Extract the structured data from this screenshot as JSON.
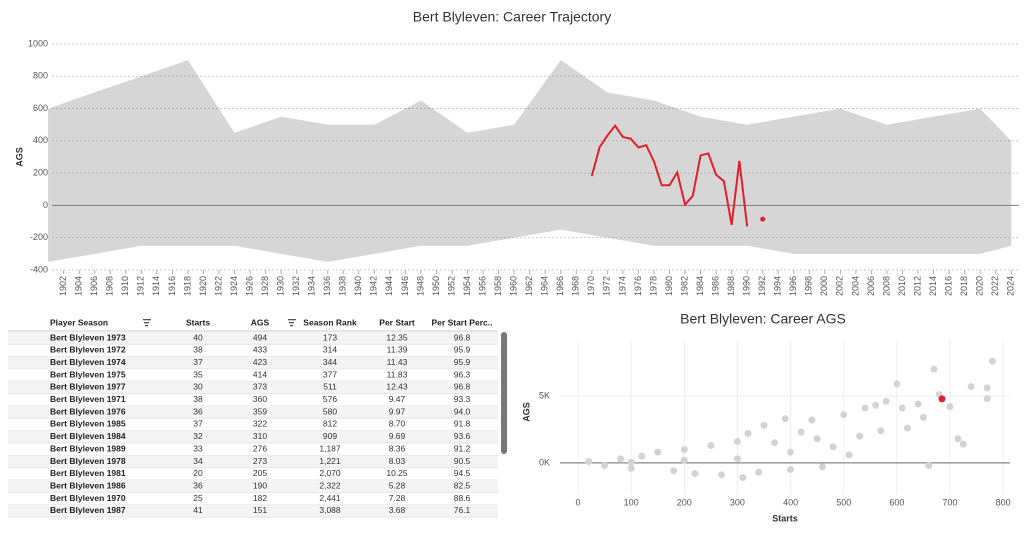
{
  "chart_data": [
    {
      "type": "line",
      "title": "Bert Blyleven: Career Trajectory",
      "y_label": "AGS",
      "xlim": [
        1900.5,
        2025
      ],
      "ylim": [
        -400,
        1000
      ],
      "yticks": [
        -400,
        -200,
        0,
        200,
        400,
        600,
        800,
        1000
      ],
      "xticks": [
        1902,
        1904,
        1906,
        1908,
        1910,
        1912,
        1914,
        1916,
        1918,
        1920,
        1922,
        1924,
        1926,
        1928,
        1930,
        1932,
        1934,
        1936,
        1938,
        1940,
        1942,
        1944,
        1946,
        1948,
        1950,
        1952,
        1954,
        1956,
        1958,
        1960,
        1962,
        1964,
        1966,
        1968,
        1970,
        1972,
        1974,
        1976,
        1978,
        1980,
        1982,
        1984,
        1986,
        1988,
        1990,
        1992,
        1994,
        1996,
        1998,
        2000,
        2002,
        2004,
        2006,
        2008,
        2010,
        2012,
        2014,
        2016,
        2018,
        2020,
        2022,
        2024
      ],
      "range": {
        "color": "#d6d6d6",
        "x": [
          1900,
          1906,
          1912,
          1918,
          1924,
          1930,
          1936,
          1942,
          1948,
          1954,
          1960,
          1966,
          1972,
          1978,
          1984,
          1990,
          1996,
          2002,
          2008,
          2014,
          2020,
          2024
        ],
        "upper": [
          600,
          700,
          800,
          900,
          450,
          550,
          500,
          500,
          650,
          450,
          500,
          900,
          700,
          650,
          550,
          500,
          550,
          600,
          500,
          550,
          600,
          400
        ],
        "lower": [
          -350,
          -300,
          -250,
          -250,
          -250,
          -300,
          -350,
          -300,
          -250,
          -250,
          -200,
          -150,
          -200,
          -250,
          -250,
          -250,
          -300,
          -300,
          -300,
          -300,
          -300,
          -250
        ]
      },
      "series": [
        {
          "color": "#e0202a",
          "x": [
            1970,
            1971,
            1972,
            1973,
            1974,
            1975,
            1976,
            1977,
            1978,
            1979,
            1980,
            1981,
            1982,
            1983,
            1984,
            1985,
            1986,
            1987,
            1988,
            1989,
            1990,
            1991,
            1992
          ],
          "values": [
            182,
            360,
            433,
            494,
            423,
            414,
            359,
            373,
            273,
            125,
            125,
            205,
            5,
            60,
            310,
            322,
            190,
            151,
            -120,
            276,
            -130,
            null,
            -85
          ]
        }
      ]
    },
    {
      "type": "scatter",
      "title": "Bert Blyleven: Career AGS",
      "x_label": "Starts",
      "y_label": "AGS",
      "xlim": [
        -34,
        813
      ],
      "ylim": [
        -2400,
        9180
      ],
      "xticks": [
        0,
        100,
        200,
        300,
        400,
        500,
        600,
        700,
        800
      ],
      "yticks": [
        {
          "value": 0,
          "label": "0K"
        },
        {
          "value": 5000,
          "label": "5K"
        }
      ],
      "series": [
        {
          "color": "#d3d3d3",
          "x": [
            20,
            50,
            80,
            100,
            120,
            150,
            180,
            200,
            220,
            250,
            270,
            300,
            310,
            320,
            340,
            350,
            370,
            390,
            400,
            420,
            440,
            460,
            480,
            500,
            510,
            530,
            540,
            560,
            570,
            600,
            610,
            620,
            640,
            650,
            660,
            670,
            680,
            700,
            715,
            725,
            740,
            770,
            780,
            770,
            580,
            400,
            300,
            200,
            100,
            450
          ],
          "values": [
            100,
            -200,
            300,
            -400,
            500,
            800,
            -600,
            1000,
            -800,
            1300,
            -900,
            1600,
            -1100,
            2200,
            -700,
            2800,
            1500,
            3300,
            -500,
            2300,
            3200,
            -300,
            1200,
            3600,
            600,
            2000,
            4100,
            4300,
            2400,
            5900,
            4100,
            2600,
            4400,
            3400,
            -200,
            7000,
            5100,
            4200,
            1800,
            1400,
            5700,
            5600,
            7600,
            4800,
            4600,
            800,
            300,
            200,
            50,
            1800
          ]
        },
        {
          "color": "#e0202a",
          "x": [
            685
          ],
          "values": [
            4780
          ]
        }
      ]
    }
  ],
  "table": {
    "header": [
      "Player Season",
      "Starts",
      "AGS",
      "Season Rank",
      "Per Start",
      "Per Start Perc.."
    ],
    "rows": [
      [
        "Bert Blyleven 1973",
        "40",
        "494",
        "173",
        "12.35",
        "96.8"
      ],
      [
        "Bert Blyleven 1972",
        "38",
        "433",
        "314",
        "11.39",
        "95.9"
      ],
      [
        "Bert Blyleven 1974",
        "37",
        "423",
        "344",
        "11.43",
        "95.9"
      ],
      [
        "Bert Blyleven 1975",
        "35",
        "414",
        "377",
        "11.83",
        "96.3"
      ],
      [
        "Bert Blyleven 1977",
        "30",
        "373",
        "511",
        "12.43",
        "96.8"
      ],
      [
        "Bert Blyleven 1971",
        "38",
        "360",
        "576",
        "9.47",
        "93.3"
      ],
      [
        "Bert Blyleven 1976",
        "36",
        "359",
        "580",
        "9.97",
        "94.0"
      ],
      [
        "Bert Blyleven 1985",
        "37",
        "322",
        "812",
        "8.70",
        "91.8"
      ],
      [
        "Bert Blyleven 1984",
        "32",
        "310",
        "909",
        "9.69",
        "93.6"
      ],
      [
        "Bert Blyleven 1989",
        "33",
        "276",
        "1,187",
        "8.36",
        "91.2"
      ],
      [
        "Bert Blyleven 1978",
        "34",
        "273",
        "1,221",
        "8.03",
        "90.5"
      ],
      [
        "Bert Blyleven 1981",
        "20",
        "205",
        "2,070",
        "10.25",
        "94.5"
      ],
      [
        "Bert Blyleven 1986",
        "36",
        "190",
        "2,322",
        "5.28",
        "82.5"
      ],
      [
        "Bert Blyleven 1970",
        "25",
        "182",
        "2,441",
        "7.28",
        "88.6"
      ],
      [
        "Bert Blyleven 1987",
        "41",
        "151",
        "3,088",
        "3.68",
        "76.1"
      ]
    ]
  }
}
